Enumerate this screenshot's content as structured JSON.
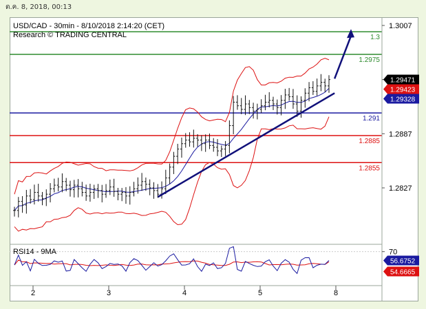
{
  "timestamp": "ต.ค. 8, 2018, 00:13",
  "header": {
    "line1": "USD/CAD - 30min - 8/10/2018 2:14:20 (CET)",
    "line2": "Research © TRADING CENTRAL"
  },
  "colors": {
    "resistance": "#2e8b2e",
    "pivot": "#1a1aa0",
    "support": "#dd1111",
    "bollinger": "#dd1111",
    "ma": "#1a1aa0",
    "trendline": "#10107a",
    "rsi": "#1a1aa0",
    "rsi_ma": "#dd1111"
  },
  "chart_data": [
    {
      "type": "candlestick",
      "title": "USD/CAD - 30min",
      "ylim": [
        1.2787,
        1.3012
      ],
      "y_ticks": [
        "1.3007",
        "1.2947",
        "1.2887",
        "1.2827"
      ],
      "x_ticks": [
        "2",
        "3",
        "4",
        "5",
        "8"
      ],
      "levels": [
        {
          "label": "1.3",
          "value": 1.3,
          "kind": "resistance"
        },
        {
          "label": "1.2975",
          "value": 1.2975,
          "kind": "resistance"
        },
        {
          "label": "1.291",
          "value": 1.291,
          "kind": "pivot"
        },
        {
          "label": "1.2885",
          "value": 1.2885,
          "kind": "support"
        },
        {
          "label": "1.2855",
          "value": 1.2855,
          "kind": "support"
        }
      ],
      "price_tags": [
        {
          "label": "1.29471",
          "value": 1.29471,
          "style": "last"
        },
        {
          "label": "1.29423",
          "value": 1.29423,
          "style": "upper-band"
        },
        {
          "label": "1.29328",
          "value": 1.29328,
          "style": "ma"
        }
      ],
      "trendline": {
        "from": [
          3.65,
          1.2817
        ],
        "to": [
          7.95,
          1.2932
        ]
      },
      "arrow": {
        "from": [
          7.95,
          1.2948
        ],
        "to": [
          8.2,
          1.3003
        ]
      },
      "close": [
        1.2802,
        1.2812,
        1.2808,
        1.2818,
        1.2814,
        1.2822,
        1.2818,
        1.2815,
        1.282,
        1.2826,
        1.283,
        1.2828,
        1.2834,
        1.283,
        1.2825,
        1.283,
        1.2826,
        1.2822,
        1.2818,
        1.2822,
        1.2826,
        1.2824,
        1.282,
        1.2824,
        1.2828,
        1.2823,
        1.282,
        1.2822,
        1.2818,
        1.2822,
        1.2826,
        1.283,
        1.2834,
        1.2831,
        1.2827,
        1.2824,
        1.282,
        1.2826,
        1.2838,
        1.285,
        1.2862,
        1.287,
        1.2876,
        1.288,
        1.2878,
        1.2882,
        1.288,
        1.2876,
        1.288,
        1.2874,
        1.2872,
        1.2868,
        1.287,
        1.2874,
        1.2896,
        1.2922,
        1.2918,
        1.2914,
        1.292,
        1.2916,
        1.2912,
        1.2914,
        1.2918,
        1.2922,
        1.2924,
        1.292,
        1.2916,
        1.2924,
        1.293,
        1.2928,
        1.292,
        1.2912,
        1.2924,
        1.2932,
        1.2938,
        1.2934,
        1.294,
        1.2944,
        1.294,
        1.2947
      ]
    },
    {
      "type": "line",
      "title": "RSI14 - 9MA",
      "y_ticks": [
        "70"
      ],
      "value_tags": [
        {
          "label": "56.6752",
          "value": 56.6752,
          "series": "RSI"
        },
        {
          "label": "54.6665",
          "value": 54.6665,
          "series": "9MA"
        }
      ]
    }
  ]
}
